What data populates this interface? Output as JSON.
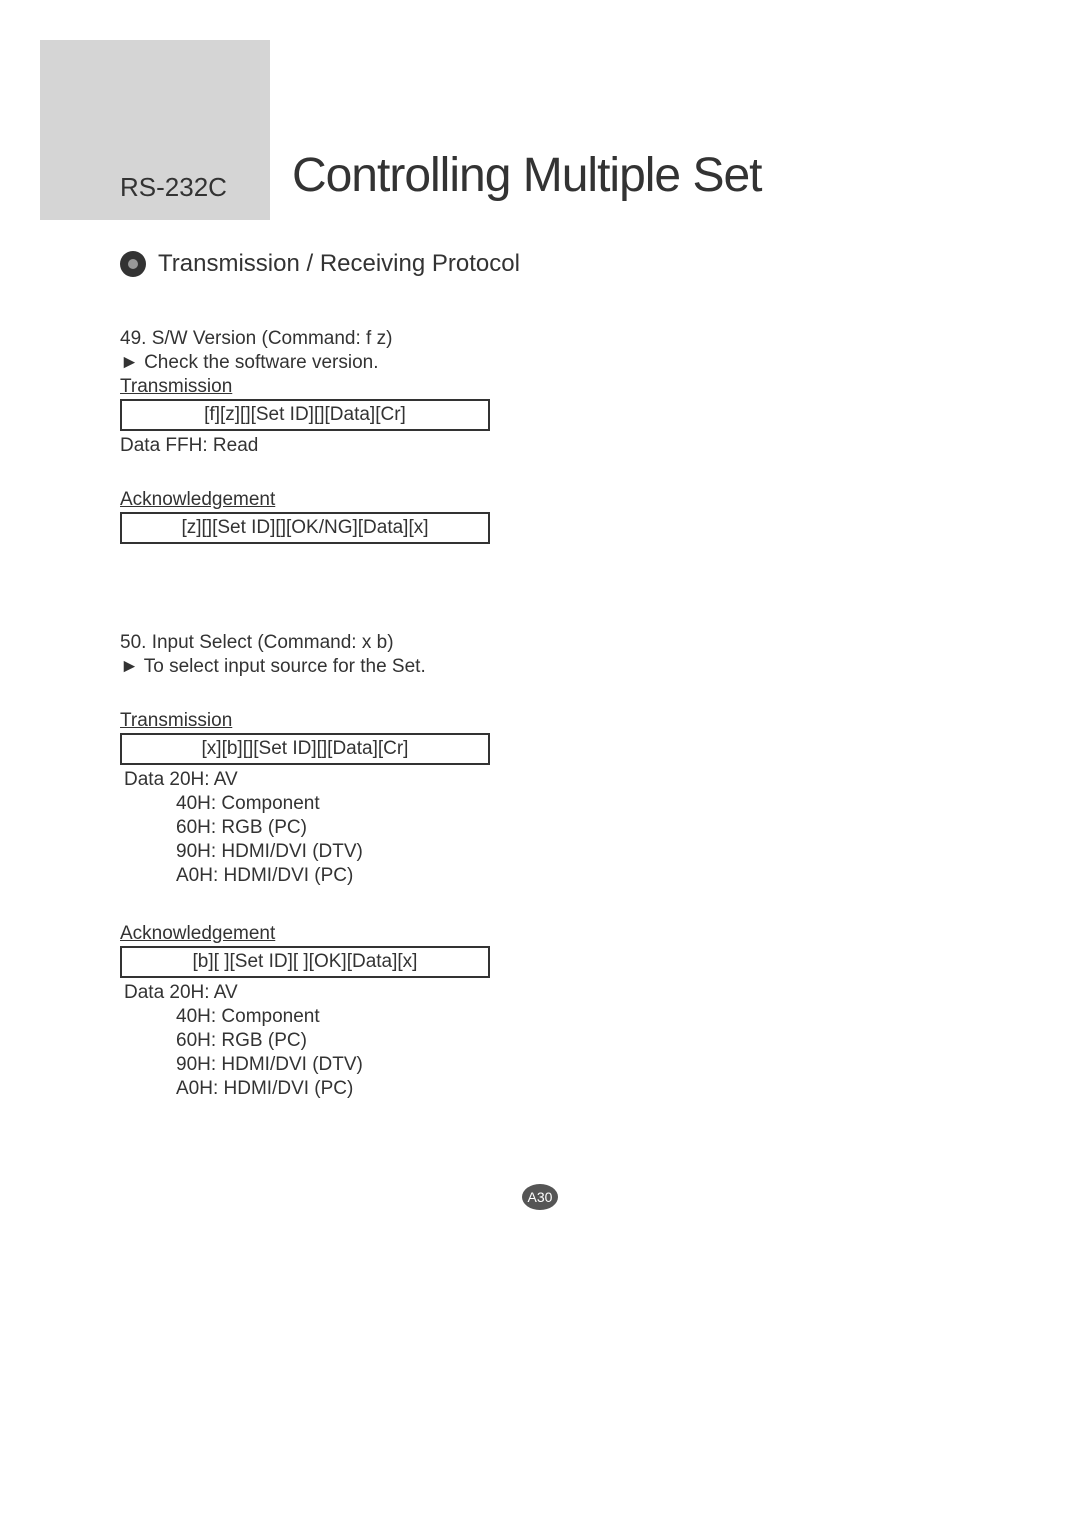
{
  "header": {
    "section_label": "RS-232C",
    "main_title": "Controlling Multiple Set"
  },
  "section": {
    "title": "Transmission / Receiving Protocol"
  },
  "commands": [
    {
      "title": "49. S/W Version (Command: f z)",
      "description": "► Check the software version.",
      "transmission_label": "Transmission",
      "transmission_code": "[f][z][][Set ID][][Data][Cr]",
      "transmission_data": "Data FFH: Read",
      "ack_label": "Acknowledgement",
      "ack_code": "[z][][Set ID][][OK/NG][Data][x]"
    },
    {
      "title": "50. Input Select (Command: x b)",
      "description": "► To select input source for the Set.",
      "transmission_label": "Transmission",
      "transmission_code": "[x][b][][Set ID][][Data][Cr]",
      "transmission_data_header": "Data  20H: AV",
      "transmission_data_lines": [
        "40H: Component",
        "60H: RGB (PC)",
        "90H: HDMI/DVI (DTV)",
        "A0H: HDMI/DVI (PC)"
      ],
      "ack_label": "Acknowledgement",
      "ack_code": "[b][ ][Set ID][ ][OK][Data][x]",
      "ack_data_header": "Data  20H: AV",
      "ack_data_lines": [
        "40H: Component",
        "60H: RGB (PC)",
        "90H: HDMI/DVI (DTV)",
        "A0H: HDMI/DVI (PC)"
      ]
    }
  ],
  "page_number": "A30",
  "colors": {
    "sidebar_gray": "#d5d5d5",
    "text": "#333333",
    "bullet_bg": "#333333",
    "bullet_inner": "#999999",
    "page_num_bg": "#555555",
    "page_num_text": "#ffffff"
  }
}
